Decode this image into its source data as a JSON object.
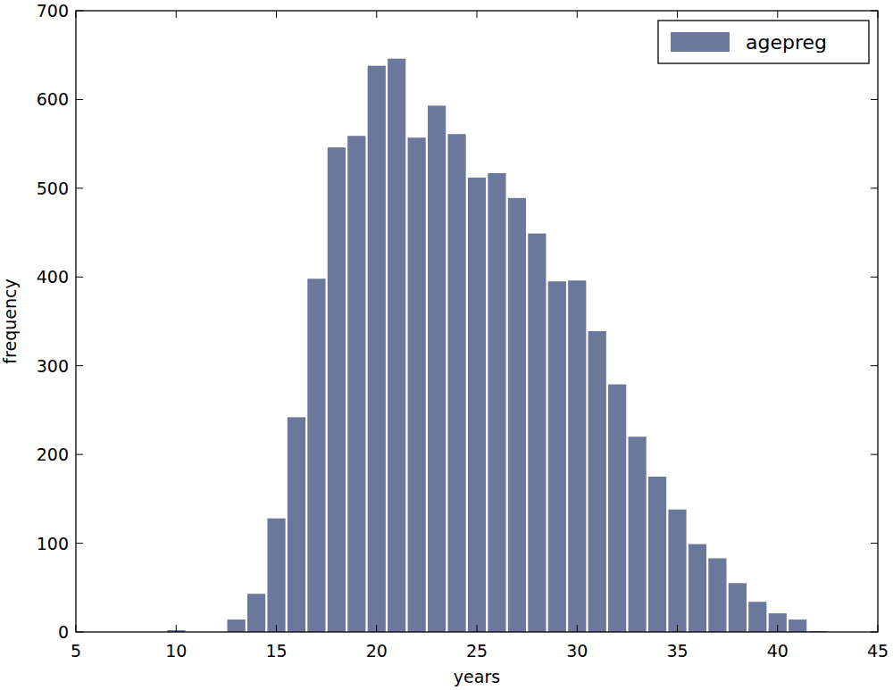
{
  "chart_data": {
    "type": "histogram",
    "x_label": "years",
    "y_label": "frequency",
    "bins": [
      9.5,
      10.5,
      11.5,
      12.5,
      13.5,
      14.5,
      15.5,
      16.5,
      17.5,
      18.5,
      19.5,
      20.5,
      21.5,
      22.5,
      23.5,
      24.5,
      25.5,
      26.5,
      27.5,
      28.5,
      29.5,
      30.5,
      31.5,
      32.5,
      33.5,
      34.5,
      35.5,
      36.5,
      37.5,
      38.5,
      39.5,
      40.5,
      41.5,
      42.5
    ],
    "series": [
      {
        "name": "agepreg",
        "color": "#6b789c",
        "values": [
          2,
          0,
          0,
          14,
          43,
          128,
          242,
          398,
          546,
          559,
          638,
          646,
          557,
          593,
          561,
          512,
          517,
          489,
          449,
          395,
          396,
          339,
          279,
          220,
          175,
          138,
          99,
          83,
          55,
          34,
          21,
          14,
          1
        ]
      }
    ],
    "xlim": [
      5,
      45
    ],
    "ylim": [
      0,
      700
    ],
    "xticks": [
      5,
      10,
      15,
      20,
      25,
      30,
      35,
      40,
      45
    ],
    "yticks": [
      0,
      100,
      200,
      300,
      400,
      500,
      600,
      700
    ],
    "grid": false,
    "legend": "upper right"
  }
}
